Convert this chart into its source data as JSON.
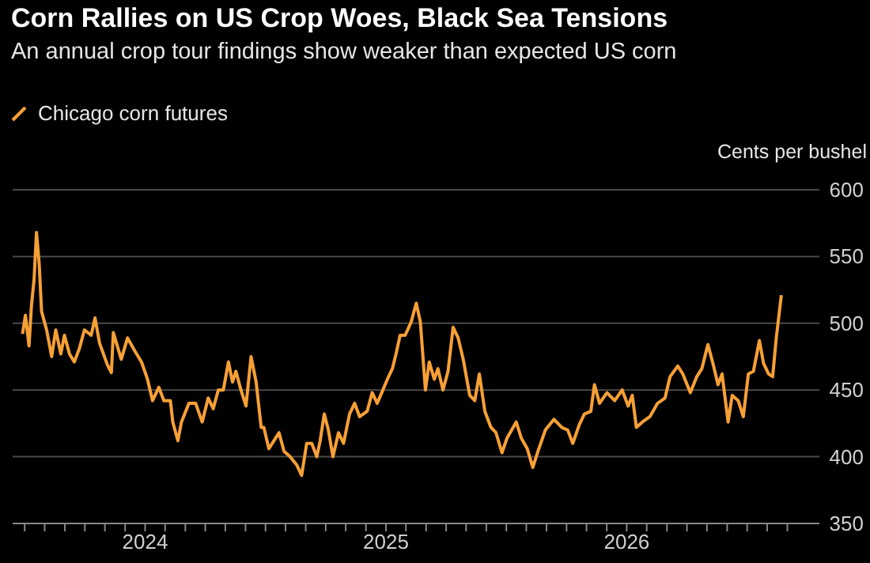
{
  "chart_data": {
    "type": "line",
    "title": "Corn Rallies on US Crop Woes, Black Sea Tensions",
    "subtitle": "An annual crop tour findings show weaker than expected US corn",
    "ylabel": "Cents per bushel",
    "legend": "top left",
    "grid": "y",
    "xlim": [
      2023.45,
      2026.8
    ],
    "xticks": [
      {
        "value": 2023.5,
        "label": null
      },
      {
        "value": 2023.583,
        "label": null
      },
      {
        "value": 2023.667,
        "label": null
      },
      {
        "value": 2023.75,
        "label": null
      },
      {
        "value": 2023.833,
        "label": null
      },
      {
        "value": 2023.917,
        "label": null
      },
      2024,
      {
        "value": 2024.083,
        "label": null
      },
      {
        "value": 2024.167,
        "label": null
      },
      {
        "value": 2024.25,
        "label": null
      },
      {
        "value": 2024.333,
        "label": null
      },
      {
        "value": 2024.417,
        "label": null
      },
      {
        "value": 2024.5,
        "label": null
      },
      {
        "value": 2024.583,
        "label": null
      },
      {
        "value": 2024.667,
        "label": null
      },
      {
        "value": 2024.75,
        "label": null
      },
      {
        "value": 2024.833,
        "label": null
      },
      {
        "value": 2024.917,
        "label": null
      },
      2025,
      {
        "value": 2025.083,
        "label": null
      },
      {
        "value": 2025.167,
        "label": null
      },
      {
        "value": 2025.25,
        "label": null
      },
      {
        "value": 2025.333,
        "label": null
      },
      {
        "value": 2025.417,
        "label": null
      },
      {
        "value": 2025.5,
        "label": null
      },
      {
        "value": 2025.583,
        "label": null
      },
      {
        "value": 2025.667,
        "label": null
      },
      {
        "value": 2025.75,
        "label": null
      },
      {
        "value": 2025.833,
        "label": null
      },
      {
        "value": 2025.917,
        "label": null
      },
      2026,
      {
        "value": 2026.083,
        "label": null
      },
      {
        "value": 2026.167,
        "label": null
      },
      {
        "value": 2026.25,
        "label": null
      },
      {
        "value": 2026.333,
        "label": null
      },
      {
        "value": 2026.417,
        "label": null
      },
      {
        "value": 2026.5,
        "label": null
      },
      {
        "value": 2026.583,
        "label": null
      },
      {
        "value": 2026.667,
        "label": null
      }
    ],
    "ylim": [
      350,
      600
    ],
    "yticks": [
      350,
      400,
      450,
      500,
      550,
      600
    ],
    "x": [
      2023.491,
      2023.503,
      2023.518,
      2023.528,
      2023.539,
      2023.549,
      2023.56,
      2023.57,
      2023.591,
      2023.612,
      2023.629,
      2023.65,
      2023.665,
      2023.686,
      2023.706,
      2023.727,
      2023.748,
      2023.776,
      2023.792,
      2023.811,
      2023.843,
      2023.86,
      2023.868,
      2023.901,
      2023.927,
      2023.958,
      2023.985,
      2024.01,
      2024.031,
      2024.057,
      2024.078,
      2024.105,
      2024.115,
      2024.136,
      2024.151,
      2024.182,
      2024.21,
      2024.237,
      2024.262,
      2024.283,
      2024.304,
      2024.325,
      2024.346,
      2024.363,
      2024.377,
      2024.398,
      2024.419,
      2024.44,
      2024.461,
      2024.482,
      2024.493,
      2024.514,
      2024.535,
      2024.556,
      2024.577,
      2024.602,
      2024.629,
      2024.65,
      2024.671,
      2024.692,
      2024.713,
      2024.727,
      2024.744,
      2024.761,
      2024.78,
      2024.803,
      2024.824,
      2024.849,
      2024.87,
      2024.891,
      2024.922,
      2024.943,
      2024.964,
      2025.006,
      2025.027,
      2025.042,
      2025.059,
      2025.08,
      2025.105,
      2025.126,
      2025.143,
      2025.164,
      2025.18,
      2025.201,
      2025.216,
      2025.237,
      2025.258,
      2025.279,
      2025.3,
      2025.321,
      2025.348,
      2025.369,
      2025.388,
      2025.411,
      2025.436,
      2025.457,
      2025.482,
      2025.503,
      2025.541,
      2025.562,
      2025.587,
      2025.61,
      2025.635,
      2025.662,
      2025.698,
      2025.73,
      2025.755,
      2025.776,
      2025.803,
      2025.824,
      2025.851,
      2025.866,
      2025.887,
      2025.918,
      2025.95,
      2025.981,
      2026.006,
      2026.023,
      2026.04,
      2026.065,
      2026.096,
      2026.128,
      2026.159,
      2026.18,
      2026.212,
      2026.233,
      2026.264,
      2026.291,
      2026.312,
      2026.337,
      2026.358,
      2026.379,
      2026.396,
      2026.421,
      2026.438,
      2026.463,
      2026.484,
      2026.505,
      2026.526,
      2026.551,
      2026.568,
      2026.589,
      2026.606,
      2026.621,
      2026.642
    ],
    "series": [
      {
        "name": "Chicago corn futures",
        "color": "#f7a035",
        "values": [
          492,
          506,
          483,
          513,
          533,
          568,
          545,
          509,
          495,
          475,
          495,
          477,
          491,
          477,
          471,
          481,
          495,
          491,
          504,
          485,
          469,
          463,
          493,
          473,
          489,
          479,
          471,
          458,
          442,
          452,
          442,
          442,
          426,
          412,
          426,
          440,
          440,
          426,
          444,
          436,
          450,
          450,
          471,
          456,
          464,
          450,
          438,
          475,
          456,
          422,
          422,
          406,
          412,
          418,
          404,
          400,
          394,
          386,
          410,
          410,
          400,
          412,
          432,
          420,
          400,
          418,
          410,
          432,
          440,
          430,
          434,
          448,
          440,
          458,
          466,
          477,
          491,
          491,
          501,
          515,
          501,
          450,
          471,
          458,
          466,
          450,
          464,
          497,
          489,
          473,
          446,
          442,
          462,
          434,
          422,
          418,
          403,
          414,
          426,
          414,
          406,
          392,
          406,
          420,
          428,
          422,
          420,
          410,
          424,
          432,
          434,
          454,
          440,
          448,
          442,
          450,
          438,
          446,
          422,
          426,
          430,
          440,
          444,
          460,
          468,
          462,
          448,
          460,
          466,
          484,
          470,
          454,
          462,
          426,
          446,
          442,
          430,
          462,
          464,
          487,
          470,
          462,
          460,
          489,
          521
        ]
      }
    ]
  }
}
